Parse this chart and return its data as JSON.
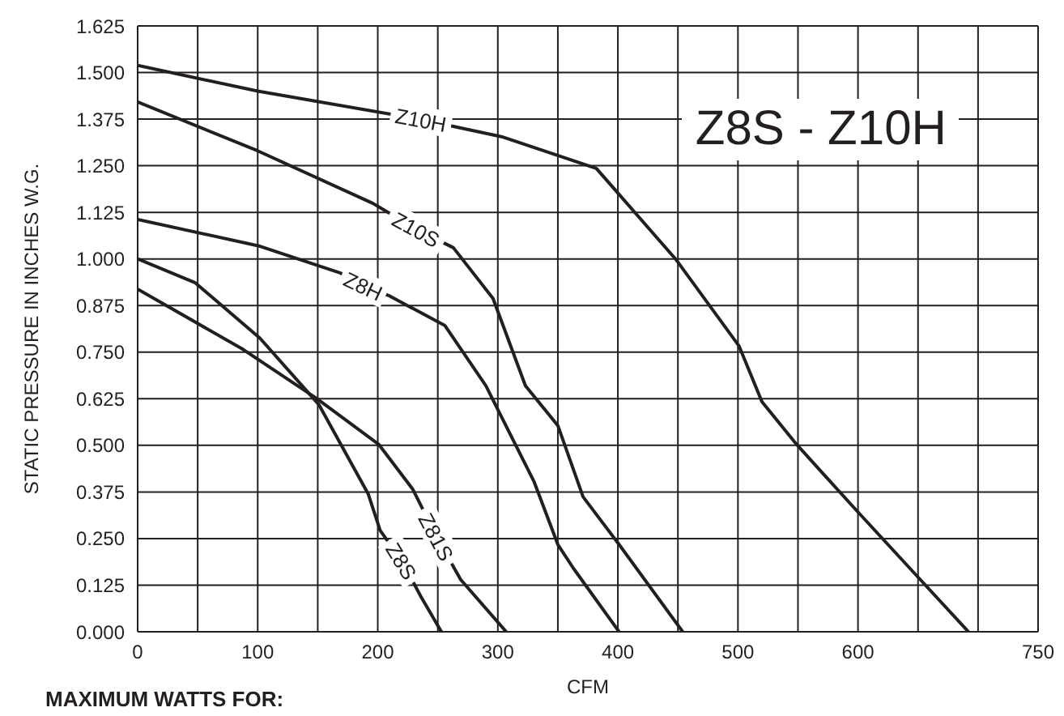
{
  "chart_data": {
    "type": "line",
    "title": "Z8S - Z10H",
    "xlabel": "CFM",
    "ylabel": "STATIC PRESSURE IN INCHES W.G.",
    "annotations": [
      "MAXIMUM WATTS FOR:"
    ],
    "xlim": [
      0,
      750
    ],
    "xticks": [
      0,
      {
        "value": 50,
        "label": null
      },
      100,
      {
        "value": 150,
        "label": null
      },
      200,
      {
        "value": 250,
        "label": null
      },
      300,
      {
        "value": 350,
        "label": null
      },
      400,
      {
        "value": 450,
        "label": null
      },
      500,
      {
        "value": 550,
        "label": null
      },
      600,
      {
        "value": 650,
        "label": null
      },
      {
        "value": 700,
        "label": null
      },
      750
    ],
    "ylim": [
      0,
      1.625
    ],
    "yticks": [
      {
        "value": 0,
        "label": "0.000"
      },
      {
        "value": 0.125,
        "label": "0.125"
      },
      {
        "value": 0.25,
        "label": "0.250"
      },
      {
        "value": 0.375,
        "label": "0.375"
      },
      {
        "value": 0.5,
        "label": "0.500"
      },
      {
        "value": 0.625,
        "label": "0.625"
      },
      {
        "value": 0.75,
        "label": "0.750"
      },
      {
        "value": 0.875,
        "label": "0.875"
      },
      {
        "value": 1.0,
        "label": "1.000"
      },
      {
        "value": 1.125,
        "label": "1.125"
      },
      {
        "value": 1.25,
        "label": "1.250"
      },
      {
        "value": 1.375,
        "label": "1.375"
      },
      {
        "value": 1.5,
        "label": "1.500"
      },
      {
        "value": 1.625,
        "label": "1.625"
      }
    ],
    "grid": true,
    "marker": "none",
    "line_style": "solid",
    "series": [
      {
        "name": "Z10H",
        "color": "#231f20",
        "x": [
          0,
          100,
          236,
          303,
          382,
          448,
          501,
          520,
          549,
          598,
          647,
          692
        ],
        "values": [
          1.519,
          1.45,
          1.374,
          1.328,
          1.243,
          1.0,
          0.766,
          0.617,
          0.502,
          0.328,
          0.157,
          0
        ]
      },
      {
        "name": "Z10S",
        "color": "#231f20",
        "x": [
          0,
          100,
          196,
          232,
          263,
          296,
          323,
          350,
          371,
          401,
          454
        ],
        "values": [
          1.421,
          1.29,
          1.149,
          1.08,
          1.03,
          0.894,
          0.66,
          0.553,
          0.362,
          0.234,
          0
        ]
      },
      {
        "name": "Z8H",
        "color": "#231f20",
        "x": [
          0,
          102,
          169,
          188,
          209,
          256,
          290,
          330,
          350,
          363,
          401
        ],
        "values": [
          1.106,
          1.034,
          0.962,
          0.928,
          0.902,
          0.821,
          0.66,
          0.404,
          0.234,
          0.17,
          0
        ]
      },
      {
        "name": "Z8S",
        "color": "#231f20",
        "x": [
          0,
          48,
          102,
          151,
          192,
          202,
          220,
          236,
          253
        ],
        "values": [
          1.0,
          0.936,
          0.787,
          0.609,
          0.37,
          0.272,
          0.19,
          0.094,
          0
        ]
      },
      {
        "name": "Z81S",
        "color": "#231f20",
        "x": [
          0,
          88,
          149,
          201,
          229,
          249,
          269,
          307
        ],
        "values": [
          0.919,
          0.757,
          0.626,
          0.502,
          0.383,
          0.255,
          0.14,
          0
        ]
      }
    ]
  }
}
